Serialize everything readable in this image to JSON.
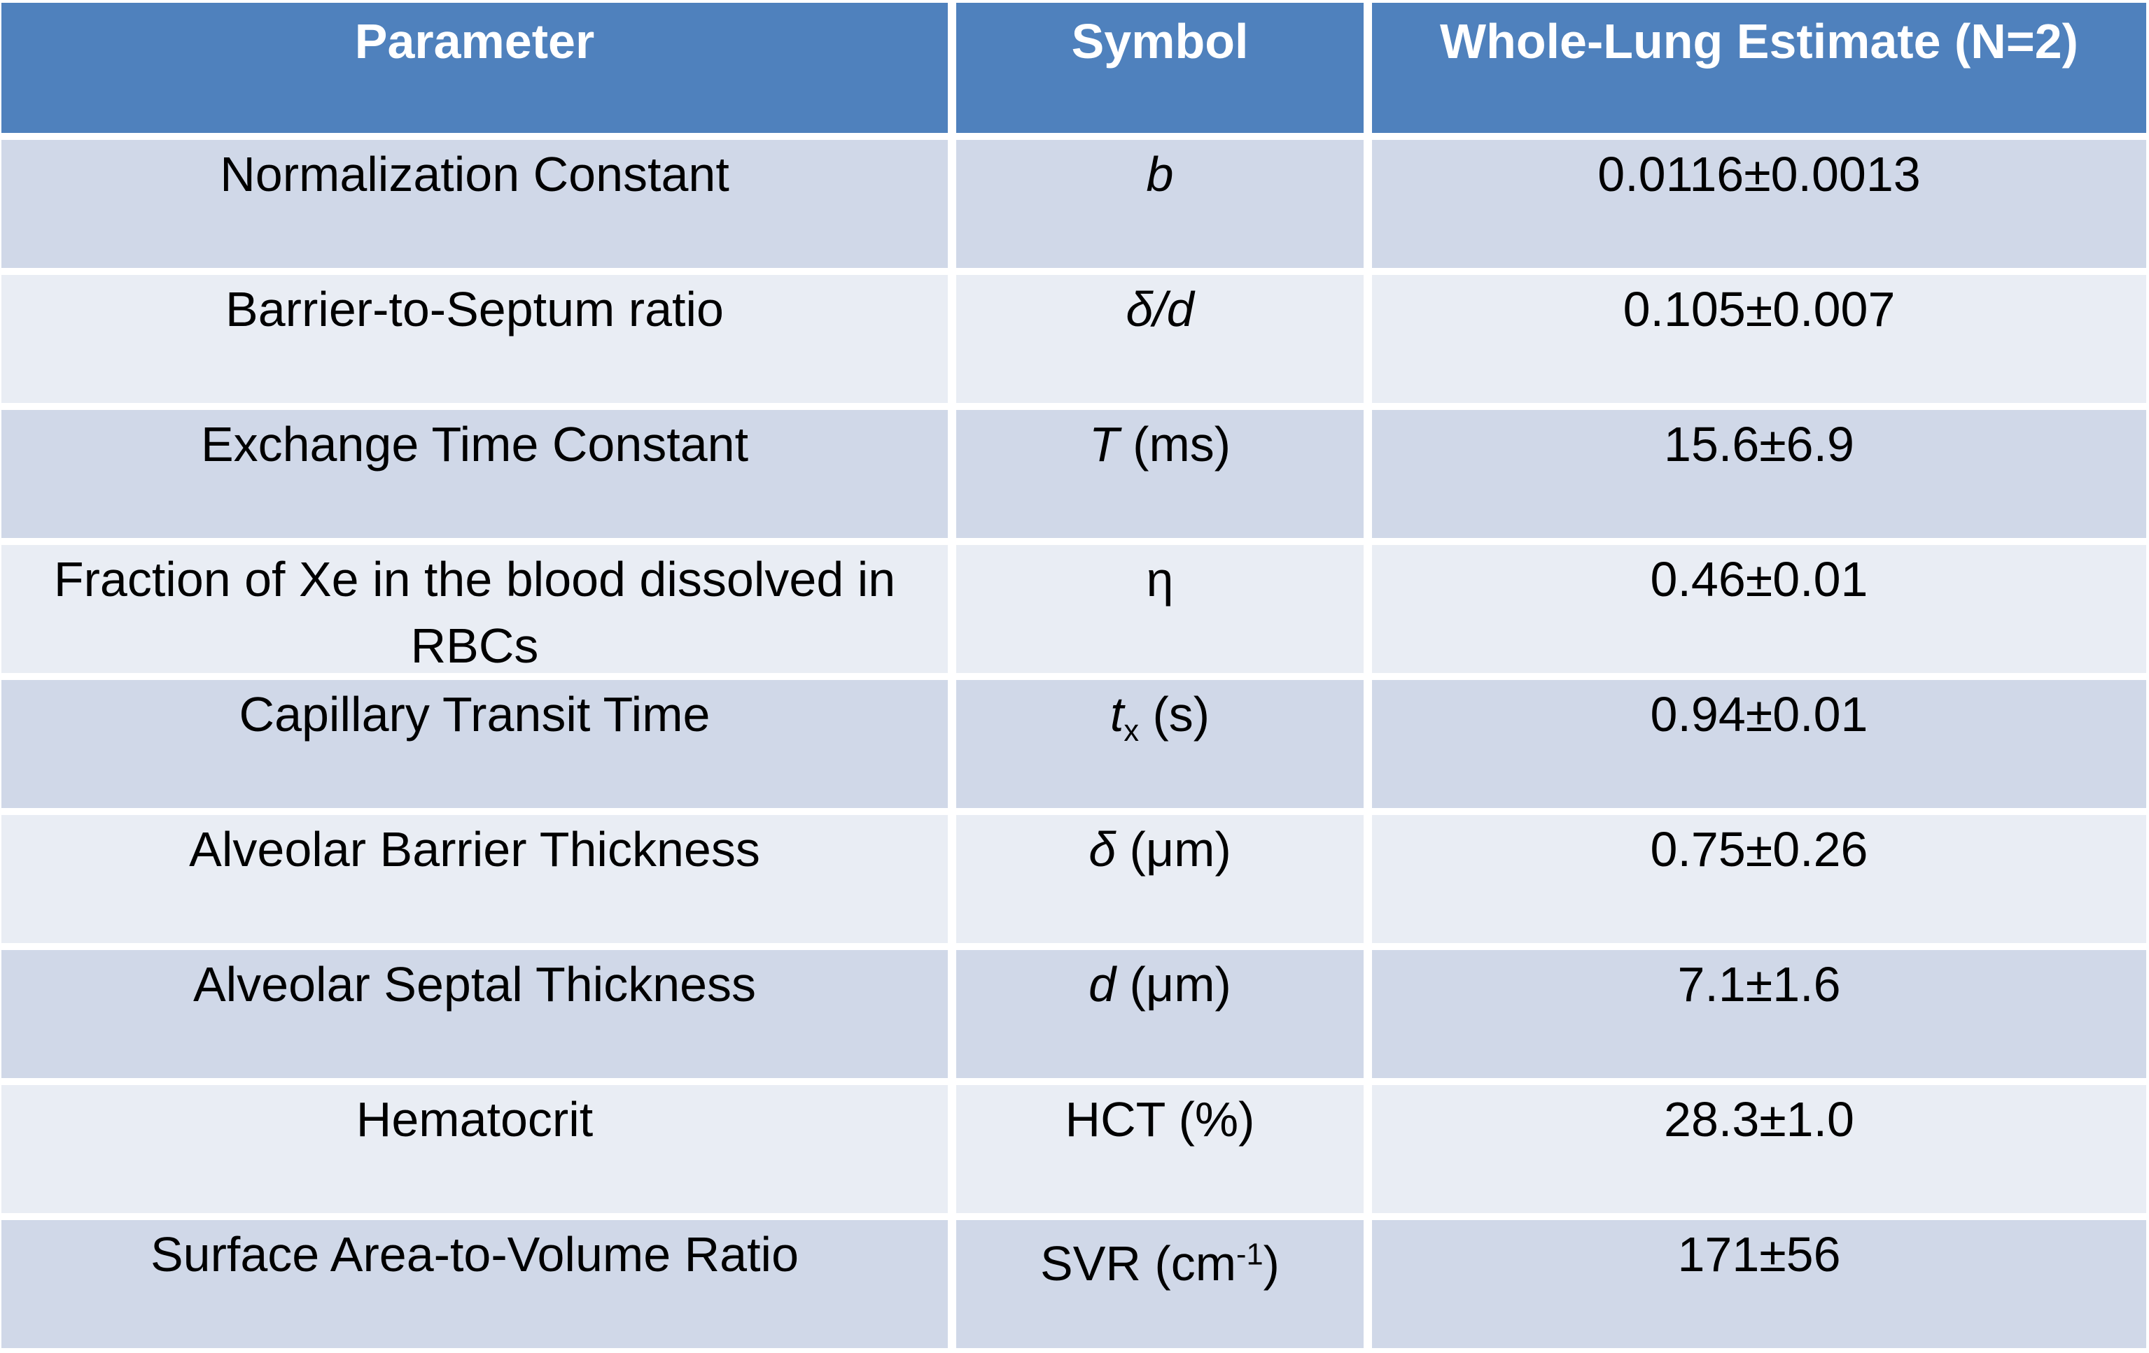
{
  "colors": {
    "header_bg": "#4F81BD",
    "header_text": "#FFFFFF",
    "row_band_dark": "#D0D8E8",
    "row_band_light": "#E9EDF4",
    "gutter": "#FFFFFF",
    "body_text": "#000000"
  },
  "header": {
    "columns": [
      "Parameter",
      "Symbol",
      "Whole-Lung Estimate (N=2)"
    ]
  },
  "rows": [
    {
      "parameter": "Normalization Constant",
      "symbol": [
        {
          "text": "b",
          "style": "italic"
        }
      ],
      "value": "0.0116±0.0013"
    },
    {
      "parameter": "Barrier-to-Septum ratio",
      "symbol": [
        {
          "text": "δ/d",
          "style": "italic"
        }
      ],
      "value": "0.105±0.007"
    },
    {
      "parameter": "Exchange Time Constant",
      "symbol": [
        {
          "text": "T",
          "style": "italic"
        },
        {
          "text": " (ms)",
          "style": "normal"
        }
      ],
      "value": "15.6±6.9"
    },
    {
      "parameter": "Fraction of Xe in the blood dissolved in RBCs",
      "symbol": [
        {
          "text": "η",
          "style": "normal"
        }
      ],
      "value": "0.46±0.01"
    },
    {
      "parameter": "Capillary Transit Time",
      "symbol": [
        {
          "text": "t",
          "style": "italic"
        },
        {
          "text": "x",
          "style": "sub"
        },
        {
          "text": " (s)",
          "style": "normal"
        }
      ],
      "value": "0.94±0.01"
    },
    {
      "parameter": "Alveolar Barrier Thickness",
      "symbol": [
        {
          "text": "δ",
          "style": "italic"
        },
        {
          "text": " (μm)",
          "style": "normal"
        }
      ],
      "value": "0.75±0.26"
    },
    {
      "parameter": "Alveolar Septal Thickness",
      "symbol": [
        {
          "text": "d",
          "style": "italic"
        },
        {
          "text": " (μm)",
          "style": "normal"
        }
      ],
      "value": "7.1±1.6"
    },
    {
      "parameter": "Hematocrit",
      "symbol": [
        {
          "text": "HCT (%)",
          "style": "normal"
        }
      ],
      "value": "28.3±1.0"
    },
    {
      "parameter": "Surface Area-to-Volume Ratio",
      "symbol": [
        {
          "text": "SVR (cm",
          "style": "normal"
        },
        {
          "text": "-1",
          "style": "sup"
        },
        {
          "text": ")",
          "style": "normal"
        }
      ],
      "value": "171±56"
    }
  ],
  "chart_data": {
    "type": "table",
    "title": "",
    "columns": [
      "Parameter",
      "Symbol",
      "Whole-Lung Estimate (N=2)"
    ],
    "rows": [
      [
        "Normalization Constant",
        "b",
        "0.0116±0.0013"
      ],
      [
        "Barrier-to-Septum ratio",
        "δ/d",
        "0.105±0.007"
      ],
      [
        "Exchange Time Constant",
        "T (ms)",
        "15.6±6.9"
      ],
      [
        "Fraction of Xe in the blood dissolved in RBCs",
        "η",
        "0.46±0.01"
      ],
      [
        "Capillary Transit Time",
        "tₓ (s)",
        "0.94±0.01"
      ],
      [
        "Alveolar Barrier Thickness",
        "δ (μm)",
        "0.75±0.26"
      ],
      [
        "Alveolar Septal Thickness",
        "d (μm)",
        "7.1±1.6"
      ],
      [
        "Hematocrit",
        "HCT (%)",
        "28.3±1.0"
      ],
      [
        "Surface Area-to-Volume Ratio",
        "SVR (cm⁻¹)",
        "171±56"
      ]
    ],
    "values_as_numbers": [
      {
        "parameter": "Normalization Constant",
        "mean": 0.0116,
        "sd": 0.0013
      },
      {
        "parameter": "Barrier-to-Septum ratio",
        "mean": 0.105,
        "sd": 0.007
      },
      {
        "parameter": "Exchange Time Constant",
        "mean": 15.6,
        "sd": 6.9,
        "unit": "ms"
      },
      {
        "parameter": "Fraction of Xe in the blood dissolved in RBCs",
        "mean": 0.46,
        "sd": 0.01
      },
      {
        "parameter": "Capillary Transit Time",
        "mean": 0.94,
        "sd": 0.01,
        "unit": "s"
      },
      {
        "parameter": "Alveolar Barrier Thickness",
        "mean": 0.75,
        "sd": 0.26,
        "unit": "μm"
      },
      {
        "parameter": "Alveolar Septal Thickness",
        "mean": 7.1,
        "sd": 1.6,
        "unit": "μm"
      },
      {
        "parameter": "Hematocrit",
        "mean": 28.3,
        "sd": 1.0,
        "unit": "%"
      },
      {
        "parameter": "Surface Area-to-Volume Ratio",
        "mean": 171,
        "sd": 56,
        "unit": "cm⁻¹"
      }
    ]
  }
}
